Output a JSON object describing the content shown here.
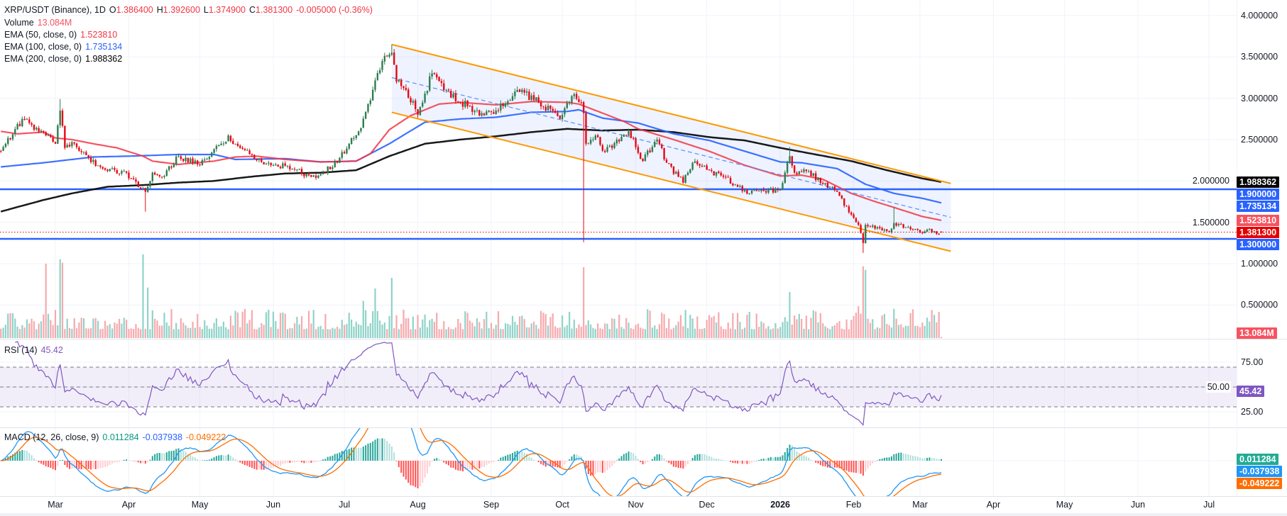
{
  "header": {
    "symbol": "XRP/USDT (Binance), 1D",
    "o_label": "O",
    "o": "1.386400",
    "h_label": "H",
    "h": "1.392600",
    "l_label": "L",
    "l": "1.374900",
    "c_label": "C",
    "c": "1.381300",
    "change": "-0.005000 (-0.36%)"
  },
  "legend": {
    "volume_label": "Volume",
    "volume_value": "13.084M",
    "ema50_label": "EMA (50, close, 0)",
    "ema50_value": "1.523810",
    "ema100_label": "EMA (100, close, 0)",
    "ema100_value": "1.735134",
    "ema200_label": "EMA (200, close, 0)",
    "ema200_value": "1.988362"
  },
  "rsi": {
    "label": "RSI (14)",
    "value": "45.42"
  },
  "macd": {
    "label": "MACD (12, 26, close, 9)",
    "histogram": "0.011284",
    "macd": "-0.037938",
    "signal": "-0.049222"
  },
  "colors": {
    "up": "#2e7d4f",
    "down": "#e50914",
    "vol_up": "#8fd3c9",
    "vol_down": "#f7a9ad",
    "ema50": "#f23645",
    "ema100": "#2962ff",
    "ema200": "#000000",
    "channel": "#ff9800",
    "hline": "#2962ff",
    "rsi": "#7e57c2",
    "macd": "#2196f3",
    "signal": "#ff6d00"
  },
  "price_axis": {
    "ticks": [
      {
        "value": 4.0,
        "label": "4.000000"
      },
      {
        "value": 3.5,
        "label": "3.500000"
      },
      {
        "value": 3.0,
        "label": "3.000000"
      },
      {
        "value": 2.5,
        "label": "2.500000"
      },
      {
        "value": 2.0,
        "label": "2.000000"
      },
      {
        "value": 1.5,
        "label": "1.500000"
      },
      {
        "value": 1.0,
        "label": "1.000000"
      },
      {
        "value": 0.5,
        "label": "0.500000"
      }
    ],
    "badges": [
      {
        "value": 1.988362,
        "label": "1.988362",
        "bg": "#000000"
      },
      {
        "value": 1.9,
        "label": "1.900000",
        "bg": "#2962ff"
      },
      {
        "value": 1.735134,
        "label": "1.735134",
        "bg": "#2962ff"
      },
      {
        "value": 1.52381,
        "label": "1.523810",
        "bg": "#f7525f"
      },
      {
        "value": 1.3813,
        "label": "1.381300",
        "bg": "#e50000"
      },
      {
        "value": 1.3,
        "label": "1.300000",
        "bg": "#2962ff"
      }
    ],
    "volume_badge": {
      "label": "13.084M",
      "bg": "#f7525f"
    }
  },
  "rsi_axis": {
    "ticks": [
      {
        "value": 75,
        "label": "75.00"
      },
      {
        "value": 50,
        "label": "50.00"
      },
      {
        "value": 25,
        "label": "25.00"
      }
    ],
    "badge": {
      "value": 45.42,
      "label": "45.42",
      "bg": "#7e57c2"
    }
  },
  "macd_axis": {
    "badges": [
      {
        "label": "0.011284",
        "bg": "#22ab94"
      },
      {
        "label": "-0.037938",
        "bg": "#2196f3"
      },
      {
        "label": "-0.049222",
        "bg": "#ff6d00"
      }
    ]
  },
  "time_axis": [
    {
      "label": "Mar",
      "date": "2025-03-01"
    },
    {
      "label": "Apr",
      "date": "2025-04-01"
    },
    {
      "label": "May",
      "date": "2025-05-01"
    },
    {
      "label": "Jun",
      "date": "2025-06-01"
    },
    {
      "label": "Jul",
      "date": "2025-07-01"
    },
    {
      "label": "Aug",
      "date": "2025-08-01"
    },
    {
      "label": "Sep",
      "date": "2025-09-01"
    },
    {
      "label": "Oct",
      "date": "2025-10-01"
    },
    {
      "label": "Nov",
      "date": "2025-11-01"
    },
    {
      "label": "Dec",
      "date": "2025-12-01"
    },
    {
      "label": "2026",
      "date": "2026-01-01",
      "year": true
    },
    {
      "label": "Feb",
      "date": "2026-02-01"
    },
    {
      "label": "Mar",
      "date": "2026-03-01"
    },
    {
      "label": "Apr",
      "date": "2026-04-01"
    },
    {
      "label": "May",
      "date": "2026-05-01"
    },
    {
      "label": "Jun",
      "date": "2026-06-01"
    },
    {
      "label": "Jul",
      "date": "2026-07-01"
    }
  ],
  "chart_data": {
    "type": "candlestick",
    "title": "XRP/USDT (Binance), 1D",
    "day0": "2025-03-01",
    "ylim": [
      0.5,
      4.0
    ],
    "close_keypoints": [
      [
        -23,
        2.36
      ],
      [
        -14,
        2.75
      ],
      [
        -11,
        2.7
      ],
      [
        0,
        2.45
      ],
      [
        2,
        2.85
      ],
      [
        4,
        2.4
      ],
      [
        7,
        2.47
      ],
      [
        11,
        2.35
      ],
      [
        20,
        2.15
      ],
      [
        30,
        2.1
      ],
      [
        36,
        1.9
      ],
      [
        38,
        1.87
      ],
      [
        41,
        2.1
      ],
      [
        45,
        2.05
      ],
      [
        52,
        2.3
      ],
      [
        60,
        2.2
      ],
      [
        70,
        2.45
      ],
      [
        73,
        2.55
      ],
      [
        78,
        2.4
      ],
      [
        85,
        2.25
      ],
      [
        93,
        2.2
      ],
      [
        100,
        2.15
      ],
      [
        108,
        2.05
      ],
      [
        113,
        2.1
      ],
      [
        120,
        2.28
      ],
      [
        128,
        2.6
      ],
      [
        132,
        2.93
      ],
      [
        138,
        3.45
      ],
      [
        142,
        3.55
      ],
      [
        144,
        3.2
      ],
      [
        148,
        3.1
      ],
      [
        153,
        2.8
      ],
      [
        159,
        3.3
      ],
      [
        165,
        3.1
      ],
      [
        171,
        2.95
      ],
      [
        180,
        2.82
      ],
      [
        186,
        2.85
      ],
      [
        195,
        3.1
      ],
      [
        204,
        2.95
      ],
      [
        213,
        2.75
      ],
      [
        219,
        3.05
      ],
      [
        222,
        2.95
      ],
      [
        223,
        2.82
      ],
      [
        224,
        2.45
      ],
      [
        228,
        2.55
      ],
      [
        232,
        2.35
      ],
      [
        237,
        2.5
      ],
      [
        242,
        2.6
      ],
      [
        248,
        2.24
      ],
      [
        254,
        2.5
      ],
      [
        258,
        2.22
      ],
      [
        263,
        2.05
      ],
      [
        265,
        1.98
      ],
      [
        269,
        2.22
      ],
      [
        276,
        2.13
      ],
      [
        282,
        2.05
      ],
      [
        288,
        1.93
      ],
      [
        293,
        1.85
      ],
      [
        299,
        1.88
      ],
      [
        306,
        1.9
      ],
      [
        310,
        2.3
      ],
      [
        312,
        2.1
      ],
      [
        318,
        2.12
      ],
      [
        324,
        1.96
      ],
      [
        330,
        1.87
      ],
      [
        335,
        1.62
      ],
      [
        339,
        1.47
      ],
      [
        341,
        1.25
      ],
      [
        342,
        1.47
      ],
      [
        348,
        1.43
      ],
      [
        352,
        1.38
      ],
      [
        354,
        1.49
      ],
      [
        359,
        1.44
      ],
      [
        363,
        1.42
      ],
      [
        366,
        1.37
      ],
      [
        369,
        1.42
      ],
      [
        372,
        1.36
      ],
      [
        374,
        1.3813
      ]
    ],
    "wick_extremes": [
      {
        "day": 2,
        "high": 2.99
      },
      {
        "day": 38,
        "low": 1.63
      },
      {
        "day": 142,
        "high": 3.65
      },
      {
        "day": 223,
        "low": 1.26
      },
      {
        "day": 310,
        "high": 2.41
      },
      {
        "day": 341,
        "low": 1.13
      },
      {
        "day": 354,
        "high": 1.68
      }
    ],
    "last_candle": {
      "day": 374,
      "open": 1.3864,
      "high": 1.3926,
      "low": 1.3749,
      "close": 1.3813
    },
    "ema50": [
      [
        -23,
        2.6
      ],
      [
        -16,
        2.57
      ],
      [
        -5,
        2.59
      ],
      [
        0,
        2.52
      ],
      [
        7,
        2.5
      ],
      [
        16,
        2.45
      ],
      [
        26,
        2.4
      ],
      [
        37,
        2.3
      ],
      [
        41,
        2.24
      ],
      [
        52,
        2.2
      ],
      [
        67,
        2.24
      ],
      [
        76,
        2.29
      ],
      [
        85,
        2.3
      ],
      [
        97,
        2.26
      ],
      [
        112,
        2.23
      ],
      [
        127,
        2.24
      ],
      [
        133,
        2.33
      ],
      [
        141,
        2.62
      ],
      [
        150,
        2.79
      ],
      [
        162,
        2.93
      ],
      [
        171,
        2.95
      ],
      [
        186,
        2.92
      ],
      [
        201,
        2.96
      ],
      [
        216,
        2.95
      ],
      [
        221,
        2.93
      ],
      [
        231,
        2.82
      ],
      [
        240,
        2.72
      ],
      [
        246,
        2.63
      ],
      [
        261,
        2.5
      ],
      [
        276,
        2.36
      ],
      [
        291,
        2.19
      ],
      [
        306,
        2.06
      ],
      [
        315,
        2.07
      ],
      [
        324,
        2.02
      ],
      [
        336,
        1.85
      ],
      [
        345,
        1.76
      ],
      [
        354,
        1.68
      ],
      [
        366,
        1.57
      ],
      [
        374,
        1.52381
      ]
    ],
    "ema100": [
      [
        -23,
        2.17
      ],
      [
        -5,
        2.22
      ],
      [
        16,
        2.29
      ],
      [
        31,
        2.3
      ],
      [
        52,
        2.32
      ],
      [
        67,
        2.32
      ],
      [
        76,
        2.26
      ],
      [
        97,
        2.27
      ],
      [
        112,
        2.23
      ],
      [
        127,
        2.24
      ],
      [
        141,
        2.45
      ],
      [
        156,
        2.71
      ],
      [
        171,
        2.75
      ],
      [
        186,
        2.77
      ],
      [
        201,
        2.83
      ],
      [
        216,
        2.84
      ],
      [
        221,
        2.86
      ],
      [
        231,
        2.76
      ],
      [
        246,
        2.7
      ],
      [
        261,
        2.57
      ],
      [
        276,
        2.49
      ],
      [
        291,
        2.36
      ],
      [
        306,
        2.23
      ],
      [
        315,
        2.22
      ],
      [
        330,
        2.15
      ],
      [
        342,
        1.96
      ],
      [
        354,
        1.85
      ],
      [
        366,
        1.79
      ],
      [
        374,
        1.735134
      ]
    ],
    "ema200": [
      [
        -23,
        1.63
      ],
      [
        -5,
        1.77
      ],
      [
        7,
        1.85
      ],
      [
        22,
        1.93
      ],
      [
        37,
        1.95
      ],
      [
        52,
        1.98
      ],
      [
        67,
        2.0
      ],
      [
        82,
        2.05
      ],
      [
        97,
        2.09
      ],
      [
        112,
        2.1
      ],
      [
        127,
        2.13
      ],
      [
        141,
        2.3
      ],
      [
        156,
        2.45
      ],
      [
        171,
        2.5
      ],
      [
        186,
        2.54
      ],
      [
        201,
        2.59
      ],
      [
        216,
        2.63
      ],
      [
        231,
        2.61
      ],
      [
        246,
        2.62
      ],
      [
        261,
        2.59
      ],
      [
        276,
        2.53
      ],
      [
        291,
        2.49
      ],
      [
        306,
        2.4
      ],
      [
        321,
        2.32
      ],
      [
        336,
        2.24
      ],
      [
        351,
        2.13
      ],
      [
        366,
        2.03
      ],
      [
        374,
        1.988362
      ]
    ],
    "channel": {
      "start_day": 142,
      "end_day": 378,
      "top": [
        3.65,
        1.97
      ],
      "mid": [
        3.25,
        1.56
      ],
      "bottom": [
        2.83,
        1.15
      ]
    },
    "horizontal_levels": [
      1.9,
      1.3
    ],
    "volume_M": {
      "base_range": [
        100,
        330
      ],
      "spikes": [
        [
          -4,
          840
        ],
        [
          2,
          890
        ],
        [
          3,
          850
        ],
        [
          37,
          945
        ],
        [
          39,
          570
        ],
        [
          130,
          420
        ],
        [
          135,
          560
        ],
        [
          142,
          680
        ],
        [
          223,
          800
        ],
        [
          310,
          520
        ],
        [
          339,
          360
        ],
        [
          341,
          810
        ],
        [
          342,
          770
        ],
        [
          354,
          330
        ]
      ],
      "last": 13.084
    },
    "rsi_levels": [
      70,
      50,
      30
    ]
  }
}
